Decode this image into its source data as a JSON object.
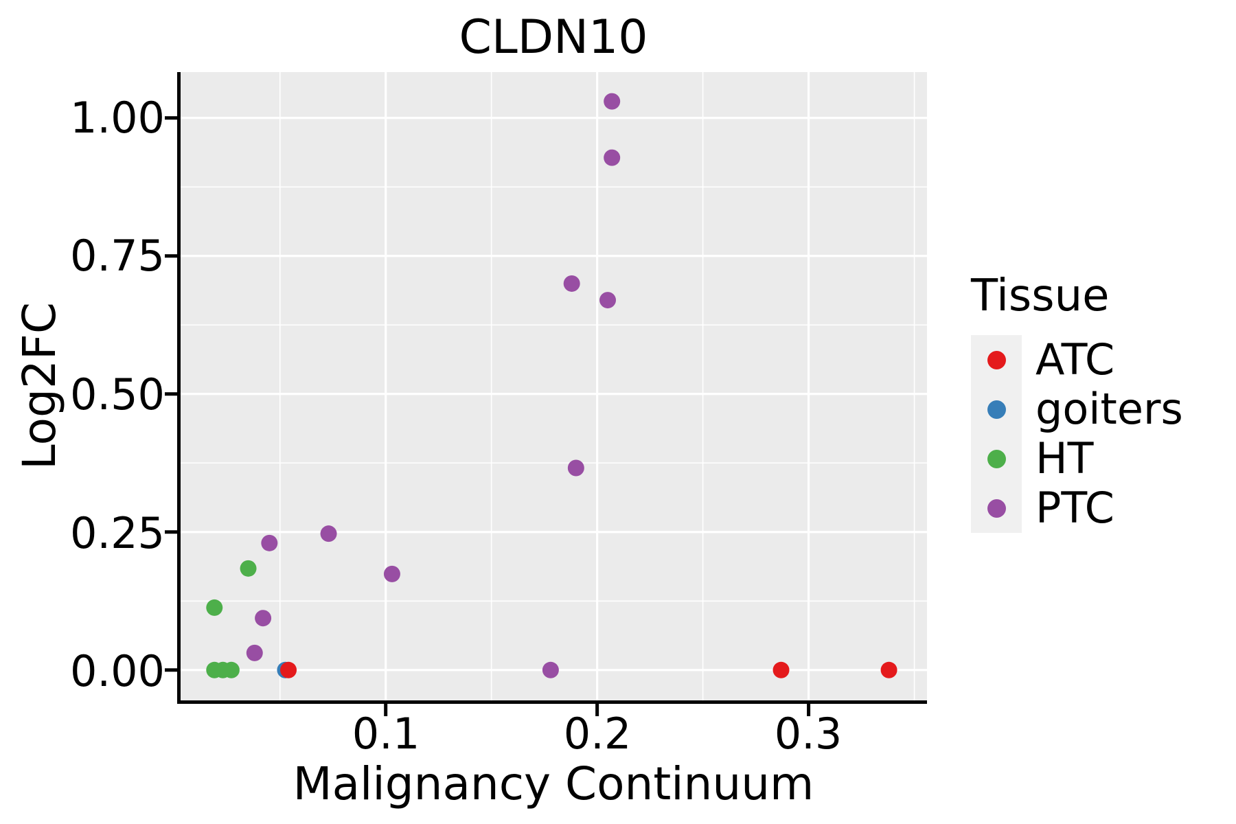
{
  "title": "CLDN10",
  "x_axis": {
    "label": "Malignancy Continuum",
    "tick_labels": [
      "0.1",
      "0.2",
      "0.3"
    ]
  },
  "y_axis": {
    "label": "Log2FC",
    "tick_labels": [
      "0.00",
      "0.25",
      "0.50",
      "0.75",
      "1.00"
    ]
  },
  "legend": {
    "title": "Tissue",
    "items": [
      {
        "label": "ATC",
        "color": "#E41A1C"
      },
      {
        "label": "goiters",
        "color": "#377EB8"
      },
      {
        "label": "HT",
        "color": "#4DAF4A"
      },
      {
        "label": "PTC",
        "color": "#984EA3"
      }
    ]
  },
  "panel": {
    "background": "#EBEBEB",
    "grid_color": "#FFFFFF",
    "axis_color": "#000000",
    "legend_key_background": "#F0F0F0"
  },
  "chart_data": {
    "type": "scatter",
    "title": "CLDN10",
    "xlabel": "Malignancy Continuum",
    "ylabel": "Log2FC",
    "xlim": [
      0.003,
      0.356
    ],
    "ylim": [
      -0.055,
      1.083
    ],
    "grid": true,
    "legend_position": "right",
    "x_ticks": {
      "values": [
        0.1,
        0.2,
        0.3
      ],
      "labels": [
        "0.1",
        "0.2",
        "0.3"
      ],
      "minor": [
        0.05,
        0.15,
        0.25,
        0.35
      ]
    },
    "y_ticks": {
      "values": [
        0.0,
        0.25,
        0.5,
        0.75,
        1.0
      ],
      "labels": [
        "0.00",
        "0.25",
        "0.50",
        "0.75",
        "1.00"
      ],
      "minor": [
        0.125,
        0.375,
        0.625,
        0.875
      ]
    },
    "point_radius_px": 12,
    "series": [
      {
        "name": "goiters",
        "color": "#377EB8",
        "points": [
          [
            0.0525,
            0.0
          ]
        ]
      },
      {
        "name": "HT",
        "color": "#4DAF4A",
        "points": [
          [
            0.019,
            0.0
          ],
          [
            0.023,
            0.0
          ],
          [
            0.027,
            0.0
          ],
          [
            0.019,
            0.113
          ],
          [
            0.035,
            0.184
          ]
        ]
      },
      {
        "name": "PTC",
        "color": "#984EA3",
        "points": [
          [
            0.038,
            0.031
          ],
          [
            0.042,
            0.094
          ],
          [
            0.103,
            0.174
          ],
          [
            0.045,
            0.23
          ],
          [
            0.073,
            0.247
          ],
          [
            0.19,
            0.366
          ],
          [
            0.205,
            0.67
          ],
          [
            0.188,
            0.7
          ],
          [
            0.207,
            0.928
          ],
          [
            0.207,
            1.03
          ],
          [
            0.178,
            0.0
          ]
        ]
      },
      {
        "name": "ATC",
        "color": "#E41A1C",
        "points": [
          [
            0.054,
            0.0
          ],
          [
            0.287,
            0.0
          ],
          [
            0.338,
            0.0
          ]
        ]
      }
    ]
  }
}
